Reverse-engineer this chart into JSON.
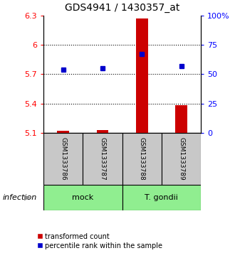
{
  "title": "GDS4941 / 1430357_at",
  "samples": [
    "GSM1333786",
    "GSM1333787",
    "GSM1333788",
    "GSM1333789"
  ],
  "transformed_counts": [
    5.12,
    5.13,
    6.27,
    5.38
  ],
  "percentile_ranks": [
    54,
    55,
    67,
    57
  ],
  "ylim_left": [
    5.1,
    6.3
  ],
  "ylim_right": [
    0,
    100
  ],
  "yticks_left": [
    5.1,
    5.4,
    5.7,
    6.0,
    6.3
  ],
  "yticks_right": [
    0,
    25,
    50,
    75,
    100
  ],
  "ytick_labels_left": [
    "5.1",
    "5.4",
    "5.7",
    "6",
    "6.3"
  ],
  "ytick_labels_right": [
    "0",
    "25",
    "50",
    "75",
    "100%"
  ],
  "bar_color": "#CC0000",
  "marker_color": "#0000CC",
  "sample_bg_color": "#C8C8C8",
  "group_bg_color": "#90EE90",
  "legend_red_label": "transformed count",
  "legend_blue_label": "percentile rank within the sample",
  "infection_label": "infection",
  "group_spans": [
    [
      0,
      1,
      "mock"
    ],
    [
      2,
      3,
      "T. gondii"
    ]
  ]
}
